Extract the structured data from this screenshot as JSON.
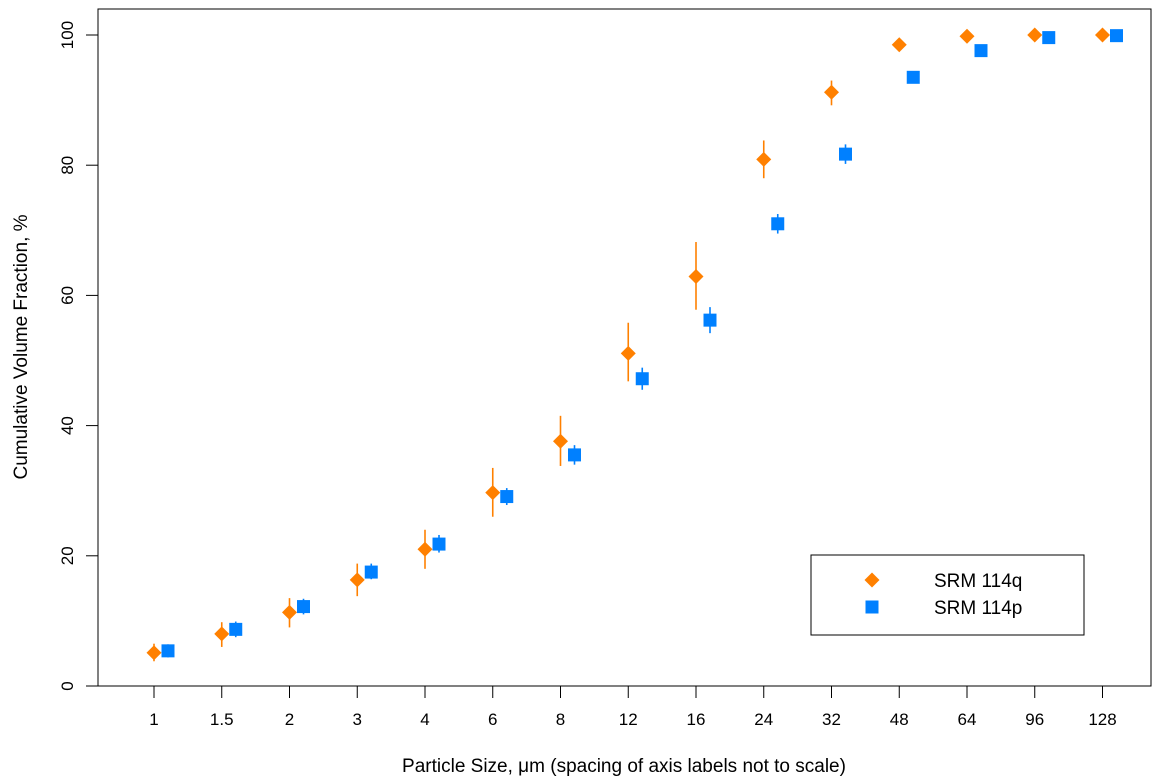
{
  "chart_data": {
    "type": "scatter",
    "xlabel": "Particle Size,  μm (spacing of axis labels not to scale)",
    "ylabel": "Cumulative Volume Fraction, %",
    "categories": [
      "1",
      "1.5",
      "2",
      "3",
      "4",
      "6",
      "8",
      "12",
      "16",
      "24",
      "32",
      "48",
      "64",
      "96",
      "128"
    ],
    "ylim": [
      0,
      100
    ],
    "yticks": [
      0,
      20,
      40,
      60,
      80,
      100
    ],
    "grid": false,
    "legend_position": "bottom-right",
    "series": [
      {
        "name": "SRM 114q",
        "marker": "diamond",
        "color": "#FF8000",
        "values": [
          5.1,
          8.0,
          11.3,
          16.3,
          21.0,
          29.7,
          37.6,
          51.1,
          62.9,
          80.9,
          91.2,
          98.5,
          99.8,
          100.0,
          100.0
        ],
        "err_low": [
          3.8,
          6.0,
          9.0,
          13.8,
          18.0,
          26.0,
          33.8,
          46.8,
          57.8,
          78.0,
          89.2,
          98.0,
          99.5,
          99.9,
          100.0
        ],
        "err_high": [
          6.5,
          9.8,
          13.5,
          18.8,
          24.0,
          33.5,
          41.5,
          55.8,
          68.2,
          83.8,
          93.0,
          99.0,
          100.0,
          100.0,
          100.0
        ]
      },
      {
        "name": "SRM 114p",
        "marker": "square",
        "color": "#0080FF",
        "values": [
          5.4,
          8.7,
          12.2,
          17.5,
          21.8,
          29.1,
          35.5,
          47.2,
          56.2,
          71.0,
          81.7,
          93.5,
          97.6,
          99.6,
          99.9
        ],
        "err_low": [
          4.4,
          7.5,
          11.0,
          16.4,
          20.5,
          27.8,
          34.0,
          45.5,
          54.2,
          69.5,
          80.2,
          93.0,
          97.0,
          99.3,
          99.7
        ],
        "err_high": [
          6.4,
          9.9,
          13.4,
          18.8,
          23.2,
          30.4,
          37.0,
          48.9,
          58.2,
          72.5,
          83.2,
          94.0,
          98.2,
          99.9,
          100.0
        ]
      }
    ]
  }
}
